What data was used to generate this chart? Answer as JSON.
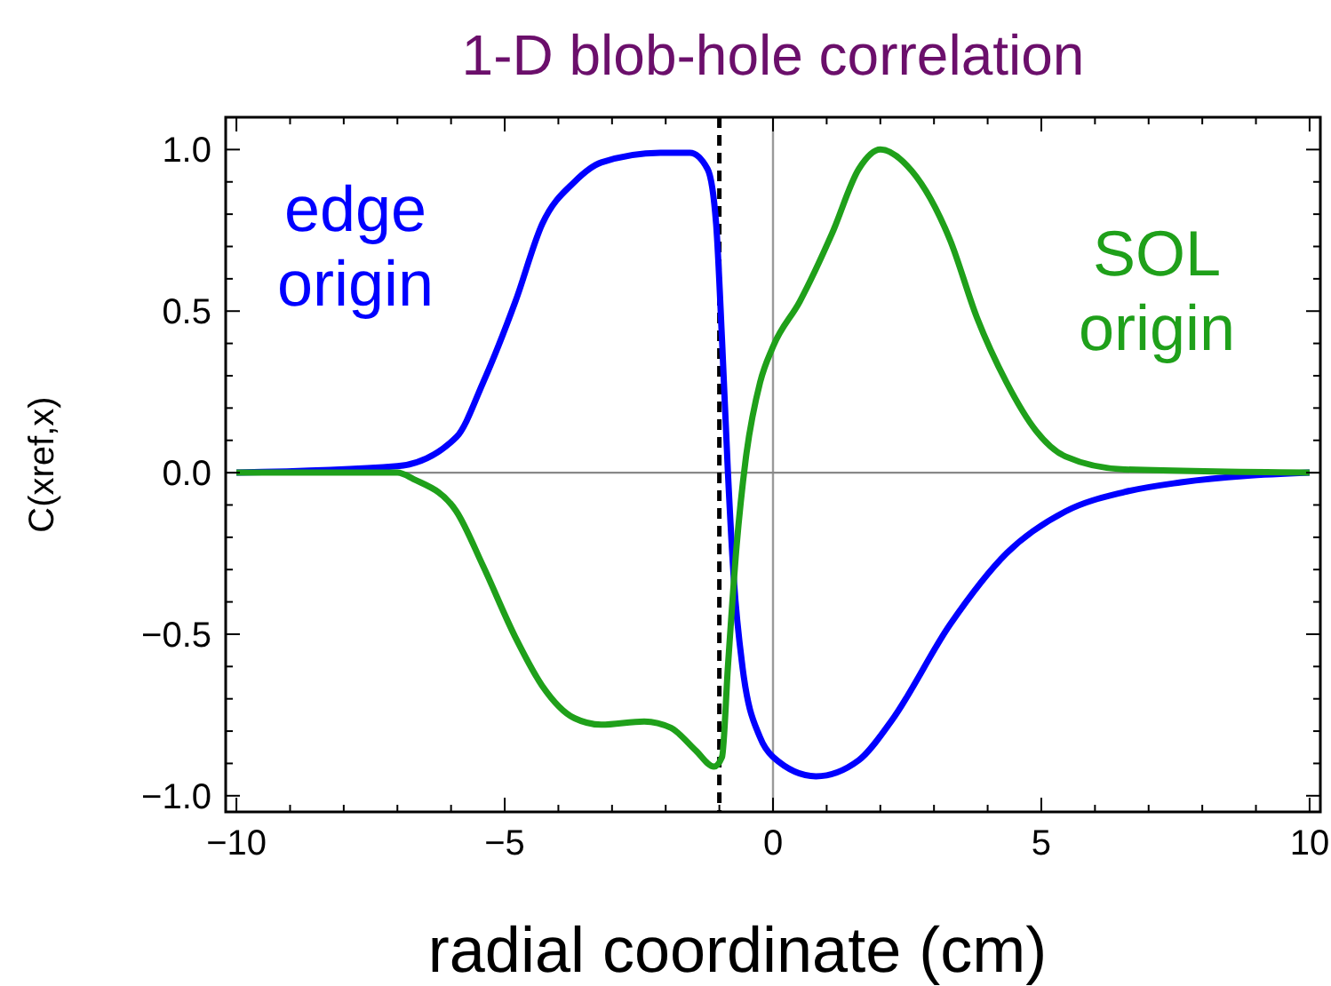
{
  "chart_data": {
    "type": "line",
    "title": "1-D blob-hole correlation",
    "xlabel": "radial coordinate (cm)",
    "ylabel": "C(xref,x)",
    "xlim": [
      -10.2,
      10.2
    ],
    "ylim": [
      -1.05,
      1.1
    ],
    "xticks": [
      {
        "value": -10,
        "label": "−10"
      },
      {
        "value": -9,
        "label": null
      },
      {
        "value": -8,
        "label": null
      },
      {
        "value": -7,
        "label": null
      },
      {
        "value": -6,
        "label": null
      },
      {
        "value": -5,
        "label": "−5"
      },
      {
        "value": -4,
        "label": null
      },
      {
        "value": -3,
        "label": null
      },
      {
        "value": -2,
        "label": null
      },
      {
        "value": -1,
        "label": null
      },
      {
        "value": 0,
        "label": "0"
      },
      {
        "value": 1,
        "label": null
      },
      {
        "value": 2,
        "label": null
      },
      {
        "value": 3,
        "label": null
      },
      {
        "value": 4,
        "label": null
      },
      {
        "value": 5,
        "label": "5"
      },
      {
        "value": 6,
        "label": null
      },
      {
        "value": 7,
        "label": null
      },
      {
        "value": 8,
        "label": null
      },
      {
        "value": 9,
        "label": null
      },
      {
        "value": 10,
        "label": "10"
      }
    ],
    "yticks": [
      {
        "value": -1,
        "label": "−1.0"
      },
      {
        "value": -0.9,
        "label": null
      },
      {
        "value": -0.8,
        "label": null
      },
      {
        "value": -0.7,
        "label": null
      },
      {
        "value": -0.6,
        "label": null
      },
      {
        "value": -0.5,
        "label": "−0.5"
      },
      {
        "value": -0.4,
        "label": null
      },
      {
        "value": -0.3,
        "label": null
      },
      {
        "value": -0.2,
        "label": null
      },
      {
        "value": -0.1,
        "label": null
      },
      {
        "value": 0,
        "label": "0.0"
      },
      {
        "value": 0.1,
        "label": null
      },
      {
        "value": 0.2,
        "label": null
      },
      {
        "value": 0.3,
        "label": null
      },
      {
        "value": 0.4,
        "label": null
      },
      {
        "value": 0.5,
        "label": "0.5"
      },
      {
        "value": 0.6,
        "label": null
      },
      {
        "value": 0.7,
        "label": null
      },
      {
        "value": 0.8,
        "label": null
      },
      {
        "value": 0.9,
        "label": null
      },
      {
        "value": 1,
        "label": "1.0"
      }
    ],
    "series": [
      {
        "color": "#0000ff",
        "x": [
          -10,
          -7,
          -5.9,
          -5.4,
          -4.8,
          -4.3,
          -3.7,
          -3.2,
          -2.1,
          -1.55,
          -1.22,
          -1.06,
          -0.95,
          -0.84,
          -0.73,
          -0.57,
          -0.24,
          0,
          0.8,
          1.6,
          2.2,
          3.3,
          4.35,
          5.45,
          6.55,
          7.6,
          10
        ],
        "values": [
          0,
          0.02,
          0.11,
          0.28,
          0.53,
          0.77,
          0.9,
          0.96,
          0.99,
          0.99,
          0.94,
          0.77,
          0.41,
          0,
          -0.33,
          -0.6,
          -0.82,
          -0.88,
          -0.94,
          -0.89,
          -0.77,
          -0.47,
          -0.25,
          -0.12,
          -0.06,
          -0.03,
          0
        ]
      },
      {
        "color": "#1fa01a",
        "x": [
          -10,
          -7,
          -6.7,
          -5.9,
          -5.4,
          -4.8,
          -4.3,
          -3.7,
          -3.2,
          -2.4,
          -1.9,
          -1.44,
          -1.1,
          -0.95,
          -0.84,
          -0.68,
          -0.51,
          -0.24,
          0,
          0.5,
          1.1,
          1.6,
          2,
          2.5,
          3.3,
          3.8,
          4.35,
          4.9,
          5.45,
          6.55,
          10
        ],
        "values": [
          0,
          0,
          -0.02,
          -0.12,
          -0.29,
          -0.51,
          -0.66,
          -0.76,
          -0.78,
          -0.77,
          -0.79,
          -0.86,
          -0.91,
          -0.88,
          -0.6,
          -0.23,
          0.04,
          0.28,
          0.39,
          0.53,
          0.74,
          0.94,
          1,
          0.95,
          0.72,
          0.48,
          0.28,
          0.13,
          0.05,
          0.01,
          0
        ]
      }
    ],
    "annotations": [
      "edge\norigin",
      "SOL\norigin"
    ],
    "ref_lines": [
      {
        "axis": "x",
        "value": 0,
        "color": "#999999",
        "line_style": "solid"
      },
      {
        "axis": "y",
        "value": 0,
        "color": "#888888",
        "line_style": "solid"
      },
      {
        "axis": "x",
        "value": -1,
        "color": "#000000",
        "line_style": "dashed"
      }
    ]
  }
}
